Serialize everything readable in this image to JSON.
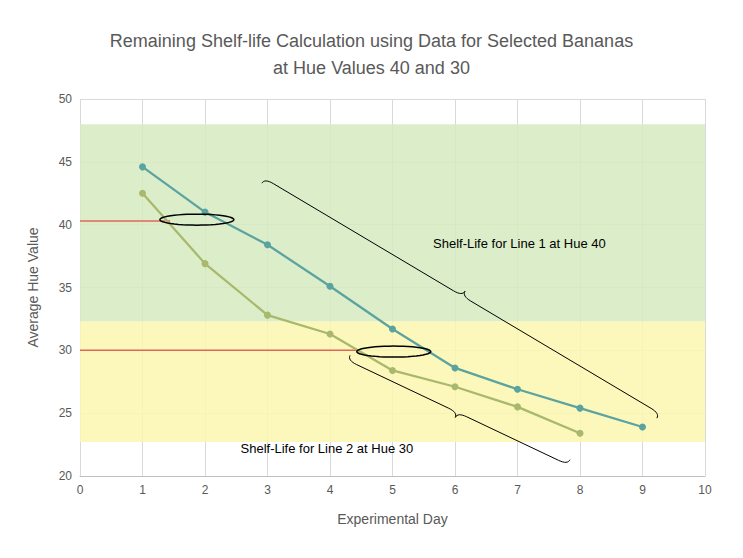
{
  "chart_data": {
    "type": "line",
    "title": "Remaining Shelf-life Calculation using Data for Selected Bananas\nat Hue Values 40 and 30",
    "x_label": "Experimental Day",
    "y_label": "Average Hue Value",
    "x": [
      1,
      2,
      3,
      4,
      5,
      6,
      7,
      8,
      9
    ],
    "series": [
      {
        "color": "#5ba3a0",
        "marker": "circle",
        "values": [
          44.6,
          41.0,
          38.4,
          35.1,
          31.7,
          28.6,
          26.9,
          25.4,
          23.9
        ]
      },
      {
        "color": "#a8b86c",
        "marker": "circle",
        "values": [
          42.5,
          36.9,
          32.8,
          31.3,
          28.4,
          27.1,
          25.5,
          23.4,
          null
        ]
      }
    ],
    "xlim": [
      0,
      10
    ],
    "xticks": [
      0,
      1,
      2,
      3,
      4,
      5,
      6,
      7,
      8,
      9,
      10
    ],
    "ylim": [
      20,
      50
    ],
    "yticks": [
      20,
      25,
      30,
      35,
      40,
      45,
      50
    ],
    "grid": true,
    "bands": [
      {
        "x_from": 0,
        "x_to": 10,
        "y_from": 32.3,
        "y_to": 48.0,
        "color": "#d6eac0"
      },
      {
        "x_from": 0,
        "x_to": 10,
        "y_from": 22.7,
        "y_to": 32.3,
        "color": "#fbf6ae"
      }
    ],
    "reference_lines": [
      {
        "y": 40.3,
        "x_from": 0,
        "x_to": 1.44,
        "color": "#e0665a"
      },
      {
        "y": 30.0,
        "x_from": 0,
        "x_to": 4.48,
        "color": "#e0665a"
      }
    ],
    "highlights": [
      {
        "x": 1.87,
        "y": 40.4
      },
      {
        "x": 5.02,
        "y": 29.9
      }
    ],
    "annotations": [
      {
        "text": "Shelf-Life for Line 1 at Hue 40",
        "x": 7.03,
        "y": 38.5,
        "brace": {
          "from": [
            2.91,
            43.3
          ],
          "to": [
            9.23,
            24.6
          ]
        }
      },
      {
        "text": "Shelf-Life for Line 2 at Hue 30",
        "x": 3.95,
        "y": 22.2,
        "brace": {
          "from": [
            4.32,
            29.6
          ],
          "to": [
            7.84,
            21.3
          ]
        }
      }
    ]
  }
}
